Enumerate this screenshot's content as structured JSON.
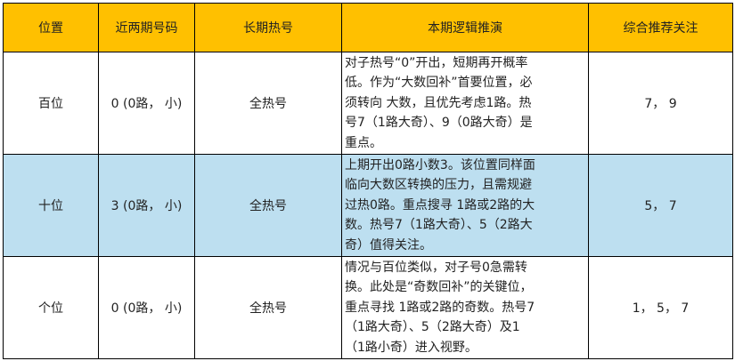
{
  "header": {
    "colors": {
      "header_bg": "#FFC000",
      "highlight_row": "#BDDFF0"
    },
    "columns": [
      "位置",
      "近两期号码",
      "长期热号",
      "本期逻辑推演",
      "综合推荐关注"
    ]
  },
  "rows": [
    {
      "position": "百位",
      "recent": "0 (0路， 小)",
      "hot": "全热号",
      "logic": [
        "对子热号“0”开出，短期再开概率",
        "低。作为“大数回补”首要位置，必",
        "须转向 大数，且优先考虑1路。热",
        "号7（1路大奇）、9（0路大奇）是",
        "重点。"
      ],
      "recommend": "7， 9"
    },
    {
      "position": "十位",
      "recent": "3 (0路， 小)",
      "hot": "全热号",
      "logic": [
        "上期开出0路小数3。该位置同样面",
        "临向大数区转换的压力，且需规避",
        "过热0路。重点搜寻 1路或2路的大",
        "数。热号7（1路大奇）、5（2路大",
        "奇）值得关注。"
      ],
      "recommend": "5， 7"
    },
    {
      "position": "个位",
      "recent": "0 (0路， 小)",
      "hot": "全热号",
      "logic": [
        "情况与百位类似，对子号0急需转",
        "换。此处是“奇数回补”的关键位，",
        "重点寻找 1路或2路的奇数。热号7",
        "（1路大奇）、5（2路大奇）及1",
        "（1路小奇）进入视野。"
      ],
      "recommend": "1， 5， 7"
    }
  ]
}
